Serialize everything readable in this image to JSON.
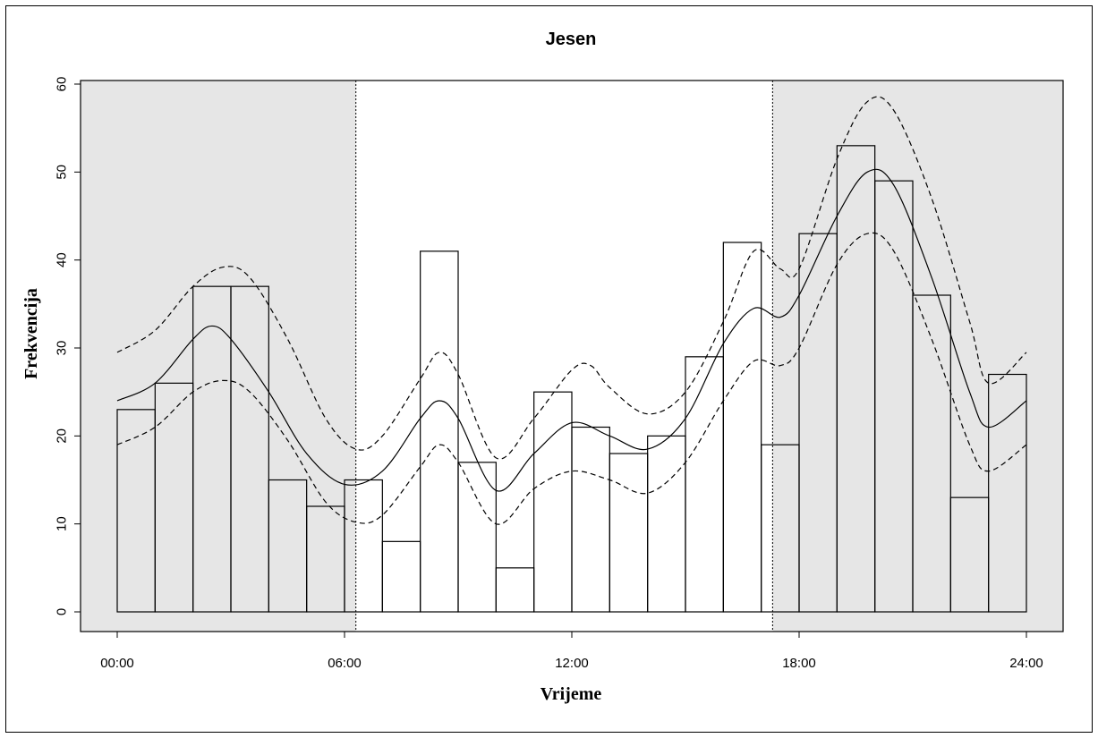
{
  "chart_data": {
    "type": "line",
    "title": "Jesen",
    "xlabel": "Vrijeme",
    "ylabel": "Frekvencija",
    "xlim": [
      0,
      24
    ],
    "ylim": [
      0,
      60
    ],
    "x_ticks": [
      0,
      6,
      12,
      18,
      24
    ],
    "x_tick_labels": [
      "00:00",
      "06:00",
      "12:00",
      "18:00",
      "24:00"
    ],
    "y_ticks": [
      0,
      10,
      20,
      30,
      40,
      50,
      60
    ],
    "y_tick_labels": [
      "0",
      "10",
      "20",
      "30",
      "40",
      "50",
      "60"
    ],
    "grid": false,
    "shaded_night_intervals": [
      [
        -1,
        6.3
      ],
      [
        17.3,
        25
      ]
    ],
    "day_boundaries": [
      6.3,
      17.3
    ],
    "histogram": {
      "name": "",
      "bin_edges": [
        0,
        1,
        2,
        3,
        4,
        5,
        6,
        7,
        8,
        9,
        10,
        11,
        12,
        13,
        14,
        15,
        16,
        17,
        18,
        19,
        20,
        21,
        22,
        23,
        24
      ],
      "values": [
        23,
        26,
        37,
        37,
        15,
        12,
        15,
        8,
        41,
        17,
        5,
        25,
        21,
        18,
        20,
        29,
        42,
        19,
        43,
        53,
        49,
        36,
        13,
        27
      ]
    },
    "series": [
      {
        "style": "solid",
        "x": [
          0,
          1,
          2,
          2.5,
          3,
          4,
          5,
          6,
          7,
          8,
          8.5,
          9,
          10,
          11,
          12,
          13,
          14,
          15,
          16,
          16.8,
          17.5,
          18,
          19,
          19.8,
          20.5,
          21.5,
          22.5,
          23,
          24
        ],
        "y": [
          24,
          26,
          31,
          32.5,
          31,
          25,
          18,
          14.5,
          16,
          22,
          24,
          22,
          13.8,
          18,
          21.5,
          20,
          18.5,
          22,
          30.5,
          34.5,
          33.5,
          36,
          45,
          50,
          48.5,
          38,
          25,
          21,
          24
        ]
      },
      {
        "style": "dashed",
        "x": [
          0,
          1,
          2,
          2.8,
          3.5,
          4.5,
          5.5,
          6.3,
          7,
          8,
          8.5,
          9,
          10,
          11,
          12,
          12.5,
          13,
          14,
          15,
          16,
          16.8,
          17.5,
          18,
          19,
          19.8,
          20.5,
          21.5,
          22.5,
          23,
          24
        ],
        "y": [
          29.5,
          32,
          37,
          39.2,
          38,
          31,
          22,
          18.5,
          20,
          26.5,
          29.5,
          27,
          17.5,
          22,
          27.5,
          28,
          25.5,
          22.5,
          25,
          33,
          41,
          39,
          39,
          51.5,
          58,
          57,
          47,
          33,
          26,
          29.5
        ]
      },
      {
        "style": "dashed",
        "x": [
          0,
          1,
          2,
          2.8,
          3.5,
          4.5,
          5.5,
          6.3,
          7,
          8,
          8.5,
          9,
          10,
          11,
          12,
          13,
          14,
          15,
          16,
          16.8,
          17.5,
          18,
          19,
          19.8,
          20.5,
          21.5,
          22.5,
          23,
          24
        ],
        "y": [
          19,
          21,
          25,
          26.3,
          25,
          19.5,
          12.5,
          10.2,
          11,
          16.5,
          19,
          17,
          10,
          14,
          16,
          15,
          13.5,
          17,
          24,
          28.5,
          28,
          30,
          39.5,
          43,
          41,
          31,
          19,
          16,
          19
        ]
      }
    ]
  }
}
